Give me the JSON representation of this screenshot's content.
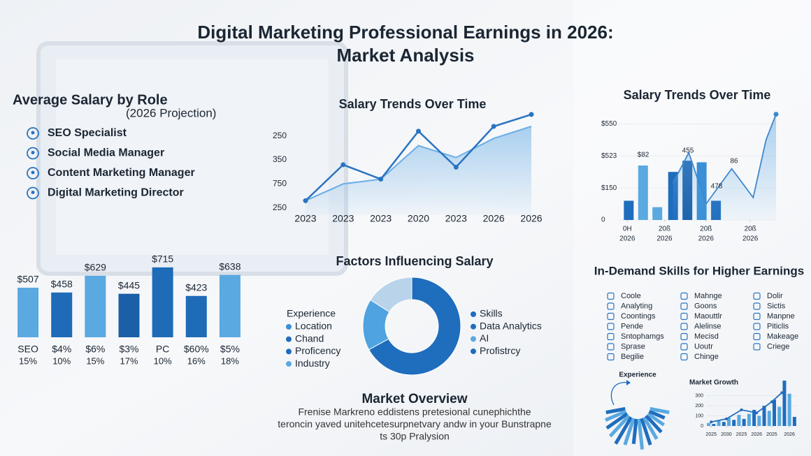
{
  "title_lines": [
    "Digital Marketing Professional Earnings in 2026:",
    "Market Analysis"
  ],
  "role_panel": {
    "title": "Average Salary by Role",
    "subtitle": "(2026 Projection)",
    "roles": [
      "SEO Specialist",
      "Social Media Manager",
      "Content Marketing Manager",
      "Digital Marketing Director"
    ]
  },
  "skills_panel": {
    "title": "In-Demand Skills for Higher Earnings",
    "columns": [
      [
        "Coole",
        "Analyting",
        "Coontings",
        "Pende",
        "Sntophamgs",
        "Sprase",
        "Begilie"
      ],
      [
        "Mahnge",
        "Goons",
        "Maouttlr",
        "Alelinse",
        "Mecisd",
        "Uoutr",
        "Chinge"
      ],
      [
        "Dolir",
        "Sictis",
        "Manpne",
        "Piticlis",
        "Makeage",
        "Criege"
      ]
    ]
  },
  "market_overview": {
    "title": "Market Overview",
    "lines": [
      "Frenise Markreno eddistens pretesional cunephichthe",
      "teroncin yaved unitehcetesurpnetvary andw in your Bunstrapne",
      "ts 30p Pralysion"
    ]
  },
  "chart_data": [
    {
      "type": "bar",
      "categories": [
        "SEO",
        "$4%",
        "$6%",
        "$3%",
        "PC",
        "$60%",
        "$5%"
      ],
      "category_sublabels": [
        "15%",
        "10%",
        "15%",
        "17%",
        "10%",
        "16%",
        "18%"
      ],
      "values": [
        507,
        458,
        629,
        445,
        715,
        423,
        638
      ],
      "value_labels": [
        "$507",
        "$458",
        "$629",
        "$445",
        "$715",
        "$423",
        "$638"
      ],
      "colors": [
        "#5aa9e0",
        "#1e6bb8",
        "#5aa9e0",
        "#1a5fa8",
        "#1e6bb8",
        "#1e6bb8",
        "#5aa9e0"
      ]
    },
    {
      "type": "line",
      "title": "Salary Trends Over Time",
      "categories": [
        "2023",
        "2023",
        "2023",
        "2020",
        "2023",
        "2026",
        "2026"
      ],
      "ylim": [
        0.7,
        5.1
      ],
      "yticks": [
        {
          "value": 4,
          "label": "250"
        },
        {
          "value": 3,
          "label": "350"
        },
        {
          "value": 2,
          "label": "750"
        },
        {
          "value": 1,
          "label": "250"
        }
      ],
      "series": [
        {
          "color": "#2a74c0",
          "values": [
            1.3,
            2.8,
            2.2,
            4.2,
            2.7,
            4.4,
            4.9
          ],
          "markers": true
        },
        {
          "color": "#6aaee6",
          "values": [
            1.3,
            2.0,
            2.2,
            3.6,
            3.1,
            3.9,
            4.4
          ],
          "area": true
        }
      ]
    },
    {
      "type": "combo",
      "title": "Salary Trends Over Time",
      "xlim": [
        0,
        11
      ],
      "ylim": [
        0,
        3.4
      ],
      "yticks": [
        {
          "value": 3,
          "label": "$550"
        },
        {
          "value": 2,
          "label": "$523"
        },
        {
          "value": 1,
          "label": "$150"
        },
        0
      ],
      "xticks": [
        {
          "value": 0.6,
          "label": "0H"
        },
        {
          "value": 3.2,
          "label": "20ß"
        },
        {
          "value": 6.1,
          "label": "20ß"
        },
        {
          "value": 9.2,
          "label": "20ß"
        }
      ],
      "xtick_years": [
        "2026",
        "2026",
        "2026",
        "2026"
      ],
      "bars": {
        "x": [
          0.7,
          1.7,
          2.7,
          3.8,
          4.8,
          5.8,
          6.8
        ],
        "values": [
          0.6,
          1.7,
          0.4,
          1.5,
          1.85,
          1.8,
          0.6
        ],
        "colors": [
          "#1f6dbd",
          "#5aa9e0",
          "#5aa9e0",
          "#1f6dbd",
          "#1a5fa8",
          "#3a8fd6",
          "#1f6dbd"
        ]
      },
      "line": {
        "color": "#3f88cc",
        "area": true,
        "x": [
          3.8,
          4.9,
          6.1,
          7.9,
          9.4,
          10.3,
          11
        ],
        "values": [
          1.15,
          2.1,
          0.5,
          1.6,
          0.7,
          2.5,
          3.3
        ]
      },
      "annotations": [
        "$82",
        "455",
        "478",
        "86"
      ]
    },
    {
      "type": "pie",
      "title": "Factors Influencing Salary",
      "values": [
        67,
        17,
        16
      ],
      "colors": [
        "#1f6dbd",
        "#4ea3e0",
        "#b9d3ea"
      ],
      "donut": true,
      "legend_left_title": "Experience",
      "legend_left": [
        {
          "label": "Location",
          "color": "#3a8fd6"
        },
        {
          "label": "Chand",
          "color": "#1f6dbd"
        },
        {
          "label": "Proficency",
          "color": "#1f6dbd"
        },
        {
          "label": "Industry",
          "color": "#5aa9e0"
        }
      ],
      "legend_right": [
        {
          "label": "Skills",
          "color": "#1f6dbd"
        },
        {
          "label": "Data Analytics",
          "color": "#1f6dbd"
        },
        {
          "label": "AI",
          "color": "#5aa9e0"
        },
        {
          "label": "Profistrcy",
          "color": "#1f6dbd"
        }
      ]
    },
    {
      "type": "radial-bar",
      "title": "Experience",
      "values": [
        14,
        16,
        18,
        20,
        22,
        20,
        18,
        22,
        20,
        18,
        16,
        14,
        12,
        14
      ],
      "colors": [
        "#1f6dbd",
        "#5aa9e0"
      ]
    },
    {
      "type": "combo",
      "title": "Market Growth",
      "xlim": [
        0,
        18
      ],
      "ylim": [
        0,
        450
      ],
      "yticks": [
        300,
        200,
        100,
        0
      ],
      "xticks": [
        {
          "value": 1,
          "label": "2025"
        },
        {
          "value": 4,
          "label": "2030"
        },
        {
          "value": 7,
          "label": "2025"
        },
        {
          "value": 10,
          "label": "2026"
        },
        {
          "value": 13,
          "label": "2025"
        },
        {
          "value": 16.5,
          "label": "2026"
        }
      ],
      "bars": {
        "x": [
          0.5,
          1.5,
          2.5,
          3.5,
          4.5,
          5.5,
          6.5,
          7.5,
          8.5,
          9.5,
          10.5,
          11.5,
          12.5,
          13.5,
          14.5,
          15.5,
          16.5,
          17.5
        ],
        "values": [
          30,
          20,
          50,
          40,
          80,
          60,
          110,
          70,
          120,
          160,
          100,
          200,
          150,
          260,
          190,
          450,
          320,
          90
        ],
        "colors": [
          "#5aa9e0",
          "#1f6dbd"
        ]
      },
      "line": {
        "color": "#1f6dbd",
        "x": [
          1,
          4,
          7,
          10,
          13,
          15
        ],
        "values": [
          40,
          70,
          160,
          130,
          240,
          330
        ],
        "markers": true
      }
    }
  ]
}
